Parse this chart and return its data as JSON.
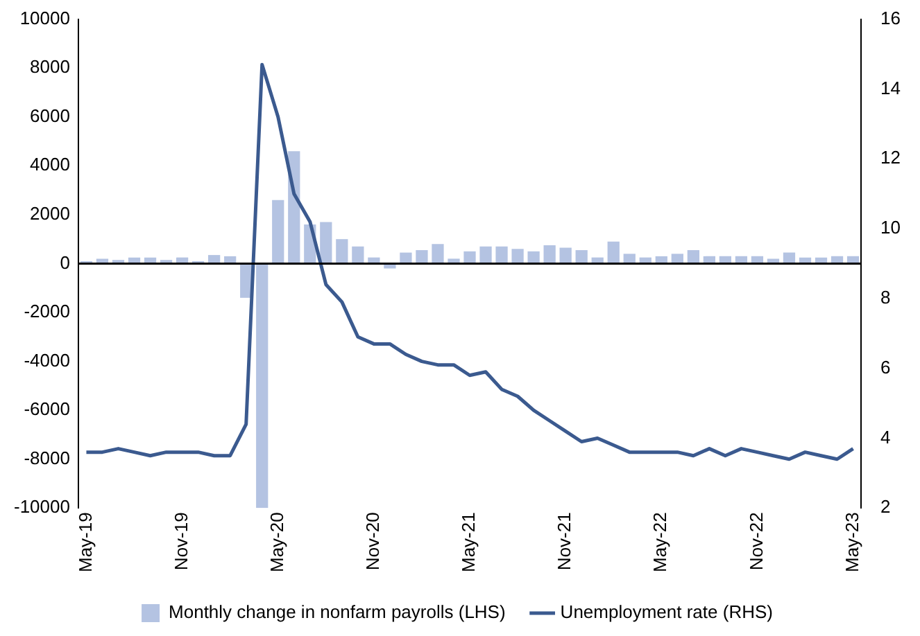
{
  "chart_data": {
    "type": "bar",
    "categories": [
      "May-19",
      null,
      null,
      null,
      null,
      null,
      "Nov-19",
      null,
      null,
      null,
      null,
      null,
      "May-20",
      null,
      null,
      null,
      null,
      null,
      "Nov-20",
      null,
      null,
      null,
      null,
      null,
      "May-21",
      null,
      null,
      null,
      null,
      null,
      "Nov-21",
      null,
      null,
      null,
      null,
      null,
      "May-22",
      null,
      null,
      null,
      null,
      null,
      "Nov-22",
      null,
      null,
      null,
      null,
      null,
      "May-23"
    ],
    "series": [
      {
        "name": "Monthly change in nonfarm payrolls (LHS)",
        "color": "#b4c3e2",
        "values": [
          100,
          200,
          150,
          250,
          250,
          150,
          250,
          100,
          350,
          300,
          -1400,
          -10000,
          2600,
          4600,
          1600,
          1700,
          1000,
          700,
          250,
          -200,
          450,
          550,
          800,
          200,
          500,
          700,
          700,
          600,
          500,
          750,
          650,
          550,
          250,
          900,
          400,
          250,
          300,
          400,
          550,
          300,
          300,
          300,
          300,
          200,
          450,
          250,
          250,
          300,
          300
        ]
      },
      {
        "name": "Unemployment rate (RHS)",
        "type": "line",
        "axis": "y2",
        "color": "#3b5a8f",
        "values": [
          3.6,
          3.6,
          3.7,
          3.6,
          3.5,
          3.6,
          3.6,
          3.6,
          3.5,
          3.5,
          4.4,
          14.7,
          13.2,
          11.0,
          10.2,
          8.4,
          7.9,
          6.9,
          6.7,
          6.7,
          6.4,
          6.2,
          6.1,
          6.1,
          5.8,
          5.9,
          5.4,
          5.2,
          4.8,
          4.5,
          4.2,
          3.9,
          4.0,
          3.8,
          3.6,
          3.6,
          3.6,
          3.6,
          3.5,
          3.7,
          3.5,
          3.7,
          3.6,
          3.5,
          3.4,
          3.6,
          3.5,
          3.4,
          3.7
        ]
      }
    ],
    "ylim": [
      -10000,
      10000
    ],
    "yticks": [
      -10000,
      -8000,
      -6000,
      -4000,
      -2000,
      0,
      2000,
      4000,
      6000,
      8000,
      10000
    ],
    "y2lim": [
      2,
      16
    ],
    "y2ticks": [
      2,
      4,
      6,
      8,
      10,
      12,
      14,
      16
    ],
    "ref_lines": [
      {
        "axis": "y",
        "value": 0,
        "color": "#000000"
      }
    ],
    "grid": false,
    "legend": "bottom",
    "marker": "none"
  }
}
